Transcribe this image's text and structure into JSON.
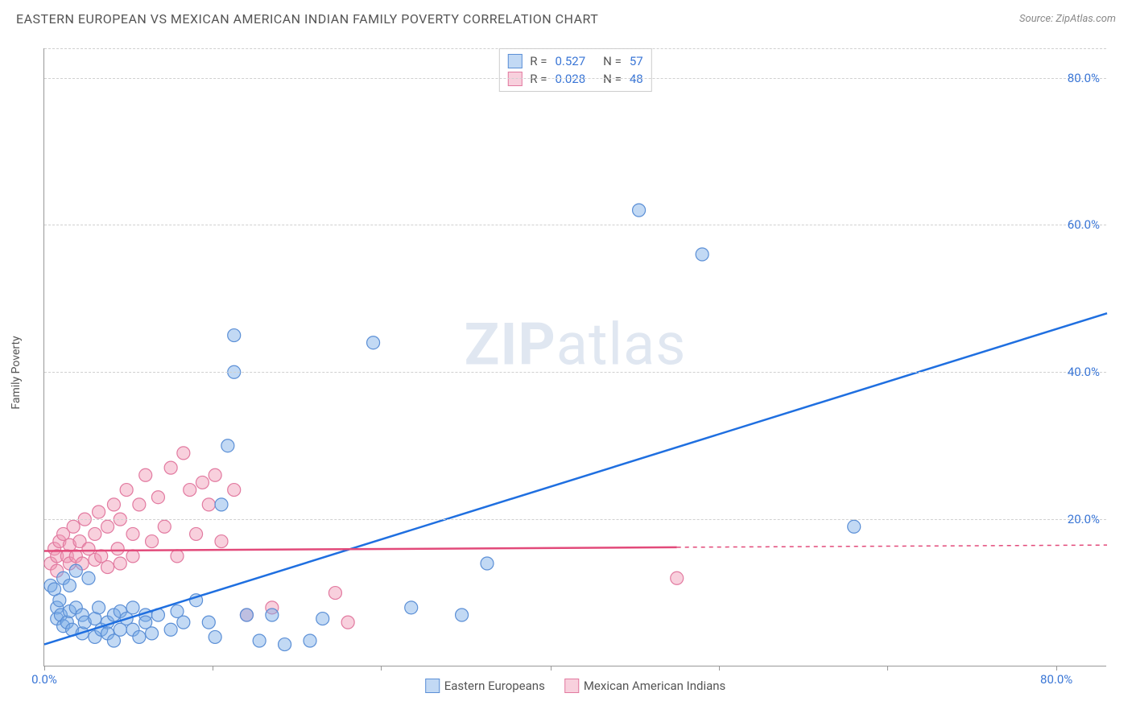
{
  "header": {
    "title": "EASTERN EUROPEAN VS MEXICAN AMERICAN INDIAN FAMILY POVERTY CORRELATION CHART",
    "source": "Source: ZipAtlas.com"
  },
  "axes": {
    "y_label": "Family Poverty",
    "x_min": 0,
    "x_max": 84,
    "y_min": 0,
    "y_max": 84,
    "y_ticks": [
      20,
      40,
      60,
      80
    ],
    "y_tick_labels": [
      "20.0%",
      "40.0%",
      "60.0%",
      "80.0%"
    ],
    "x_ticks": [
      0,
      13.3,
      26.6,
      40,
      53.3,
      66.6,
      80
    ],
    "x_tick_labels_sparse": {
      "0": "0.0%",
      "80": "80.0%"
    },
    "tick_color": "#3a76d6",
    "grid_color": "#d0d0d0"
  },
  "watermark": {
    "bold": "ZIP",
    "rest": "atlas"
  },
  "series": {
    "blue": {
      "label": "Eastern Europeans",
      "fill": "rgba(120,170,230,0.45)",
      "stroke": "#5b8fd6",
      "line_color": "#1f6fe0",
      "r": 8,
      "R": 0.527,
      "N": 57,
      "trend": {
        "x1": 0,
        "y1": 3,
        "x2": 84,
        "y2": 48
      },
      "points": [
        [
          0.5,
          11
        ],
        [
          0.8,
          10.5
        ],
        [
          1,
          8
        ],
        [
          1,
          6.5
        ],
        [
          1.2,
          9
        ],
        [
          1.3,
          7
        ],
        [
          1.5,
          5.5
        ],
        [
          1.5,
          12
        ],
        [
          1.8,
          6
        ],
        [
          2,
          11
        ],
        [
          2,
          7.5
        ],
        [
          2.2,
          5
        ],
        [
          2.5,
          13
        ],
        [
          2.5,
          8
        ],
        [
          3,
          7
        ],
        [
          3,
          4.5
        ],
        [
          3.2,
          6
        ],
        [
          3.5,
          12
        ],
        [
          4,
          6.5
        ],
        [
          4,
          4
        ],
        [
          4.3,
          8
        ],
        [
          4.5,
          5
        ],
        [
          5,
          6
        ],
        [
          5,
          4.5
        ],
        [
          5.5,
          7
        ],
        [
          5.5,
          3.5
        ],
        [
          6,
          7.5
        ],
        [
          6,
          5
        ],
        [
          6.5,
          6.5
        ],
        [
          7,
          8
        ],
        [
          7,
          5
        ],
        [
          7.5,
          4
        ],
        [
          8,
          7
        ],
        [
          8,
          6
        ],
        [
          8.5,
          4.5
        ],
        [
          9,
          7
        ],
        [
          10,
          5
        ],
        [
          10.5,
          7.5
        ],
        [
          11,
          6
        ],
        [
          12,
          9
        ],
        [
          13,
          6
        ],
        [
          13.5,
          4
        ],
        [
          14,
          22
        ],
        [
          14.5,
          30
        ],
        [
          15,
          40
        ],
        [
          15,
          45
        ],
        [
          16,
          7
        ],
        [
          17,
          3.5
        ],
        [
          18,
          7
        ],
        [
          19,
          3
        ],
        [
          21,
          3.5
        ],
        [
          22,
          6.5
        ],
        [
          26,
          44
        ],
        [
          29,
          8
        ],
        [
          33,
          7
        ],
        [
          35,
          14
        ],
        [
          47,
          62
        ],
        [
          52,
          56
        ],
        [
          64,
          19
        ]
      ]
    },
    "pink": {
      "label": "Mexican American Indians",
      "fill": "rgba(240,150,180,0.45)",
      "stroke": "#e27aa0",
      "line_color": "#e24a7a",
      "r": 8,
      "R": 0.028,
      "N": 48,
      "trend": {
        "x1": 0,
        "y1": 15.7,
        "x2": 50,
        "y2": 16.2
      },
      "trend_dash": {
        "x1": 50,
        "y1": 16.2,
        "x2": 84,
        "y2": 16.5
      },
      "points": [
        [
          0.5,
          14
        ],
        [
          0.8,
          16
        ],
        [
          1,
          15
        ],
        [
          1,
          13
        ],
        [
          1.2,
          17
        ],
        [
          1.5,
          18
        ],
        [
          1.8,
          15
        ],
        [
          2,
          16.5
        ],
        [
          2,
          14
        ],
        [
          2.3,
          19
        ],
        [
          2.5,
          15
        ],
        [
          2.8,
          17
        ],
        [
          3,
          14
        ],
        [
          3.2,
          20
        ],
        [
          3.5,
          16
        ],
        [
          4,
          18
        ],
        [
          4,
          14.5
        ],
        [
          4.3,
          21
        ],
        [
          4.5,
          15
        ],
        [
          5,
          19
        ],
        [
          5,
          13.5
        ],
        [
          5.5,
          22
        ],
        [
          5.8,
          16
        ],
        [
          6,
          20
        ],
        [
          6,
          14
        ],
        [
          6.5,
          24
        ],
        [
          7,
          18
        ],
        [
          7,
          15
        ],
        [
          7.5,
          22
        ],
        [
          8,
          26
        ],
        [
          8.5,
          17
        ],
        [
          9,
          23
        ],
        [
          9.5,
          19
        ],
        [
          10,
          27
        ],
        [
          10.5,
          15
        ],
        [
          11,
          29
        ],
        [
          11.5,
          24
        ],
        [
          12,
          18
        ],
        [
          12.5,
          25
        ],
        [
          13,
          22
        ],
        [
          13.5,
          26
        ],
        [
          14,
          17
        ],
        [
          15,
          24
        ],
        [
          16,
          7
        ],
        [
          18,
          8
        ],
        [
          23,
          10
        ],
        [
          24,
          6
        ],
        [
          50,
          12
        ]
      ]
    }
  },
  "corr_legend": {
    "rows": [
      {
        "series": "blue",
        "r_label": "R =",
        "n_label": "N ="
      },
      {
        "series": "pink",
        "r_label": "R =",
        "n_label": "N ="
      }
    ]
  }
}
